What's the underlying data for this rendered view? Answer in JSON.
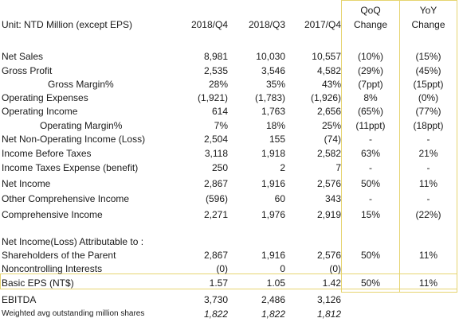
{
  "header": {
    "unit_label": "Unit: NTD Million (except EPS)",
    "col_q4_2018": "2018/Q4",
    "col_q3_2018": "2018/Q3",
    "col_q4_2017": "2017/Q4",
    "qoq_line1": "QoQ",
    "qoq_line2": "Change",
    "yoy_line1": "YoY",
    "yoy_line2": "Change"
  },
  "rows": [
    {
      "label": "Net Sales",
      "q4_2018": "8,981",
      "q3_2018": "10,030",
      "q4_2017": "10,557",
      "qoq": "(10%)",
      "yoy": "(15%)"
    },
    {
      "label": "Gross Profit",
      "q4_2018": "2,535",
      "q3_2018": "3,546",
      "q4_2017": "4,582",
      "qoq": "(29%)",
      "yoy": "(45%)"
    },
    {
      "label": "Gross Margin%",
      "q4_2018": "28%",
      "q3_2018": "35%",
      "q4_2017": "43%",
      "qoq": "(7ppt)",
      "yoy": "(15ppt)"
    },
    {
      "label": "Operating Expenses",
      "q4_2018": "(1,921)",
      "q3_2018": "(1,783)",
      "q4_2017": "(1,926)",
      "qoq": "8%",
      "yoy": "(0%)"
    },
    {
      "label": "Operating Income",
      "q4_2018": "614",
      "q3_2018": "1,763",
      "q4_2017": "2,656",
      "qoq": "(65%)",
      "yoy": "(77%)"
    },
    {
      "label": "Operating Margin%",
      "q4_2018": "7%",
      "q3_2018": "18%",
      "q4_2017": "25%",
      "qoq": "(11ppt)",
      "yoy": "(18ppt)"
    },
    {
      "label": "Net Non-Operating Income (Loss)",
      "q4_2018": "2,504",
      "q3_2018": "155",
      "q4_2017": "(74)",
      "qoq": "-",
      "yoy": "-"
    },
    {
      "label": "Income Before Taxes",
      "q4_2018": "3,118",
      "q3_2018": "1,918",
      "q4_2017": "2,582",
      "qoq": "63%",
      "yoy": "21%"
    },
    {
      "label": "Income Taxes Expense (benefit)",
      "q4_2018": "250",
      "q3_2018": "2",
      "q4_2017": "7",
      "qoq": "-",
      "yoy": "-"
    },
    {
      "label": "Net Income",
      "q4_2018": "2,867",
      "q3_2018": "1,916",
      "q4_2017": "2,576",
      "qoq": "50%",
      "yoy": "11%"
    },
    {
      "label": "Other Comprehensive Income",
      "q4_2018": "(596)",
      "q3_2018": "60",
      "q4_2017": "343",
      "qoq": "-",
      "yoy": "-"
    },
    {
      "label": "Comprehensive Income",
      "q4_2018": "2,271",
      "q3_2018": "1,976",
      "q4_2017": "2,919",
      "qoq": "15%",
      "yoy": "(22%)"
    },
    {
      "label": "Net Income(Loss) Attributable to :",
      "q4_2018": "",
      "q3_2018": "",
      "q4_2017": "",
      "qoq": "",
      "yoy": ""
    },
    {
      "label": "Shareholders of the Parent",
      "q4_2018": "2,867",
      "q3_2018": "1,916",
      "q4_2017": "2,576",
      "qoq": "50%",
      "yoy": "11%"
    },
    {
      "label": "Noncontrolling Interests",
      "q4_2018": "(0)",
      "q3_2018": "0",
      "q4_2017": "(0)",
      "qoq": "",
      "yoy": ""
    },
    {
      "label": "Basic EPS (NT$)",
      "q4_2018": "1.57",
      "q3_2018": "1.05",
      "q4_2017": "1.42",
      "qoq": "50%",
      "yoy": "11%"
    },
    {
      "label": "EBITDA",
      "q4_2018": "3,730",
      "q3_2018": "2,486",
      "q4_2017": "3,126",
      "qoq": "",
      "yoy": ""
    },
    {
      "label": "Weighted avg outstanding million shares",
      "q4_2018": "1,822",
      "q3_2018": "1,822",
      "q4_2017": "1,812",
      "qoq": "",
      "yoy": ""
    }
  ]
}
